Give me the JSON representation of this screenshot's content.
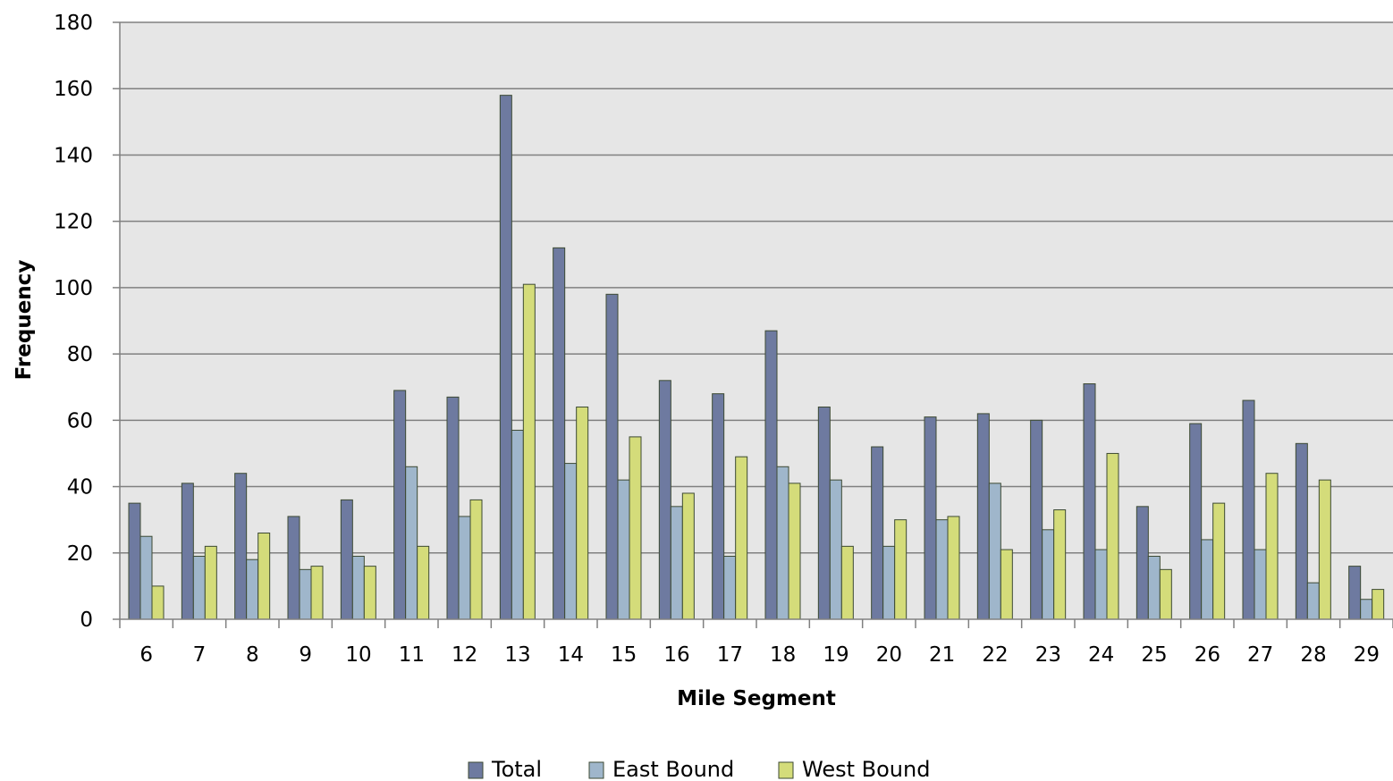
{
  "chart_data": {
    "type": "bar",
    "title": "",
    "xlabel": "Mile Segment",
    "ylabel": "Frequency",
    "ylim": [
      0,
      180
    ],
    "y_ticks": [
      0,
      20,
      40,
      60,
      80,
      100,
      120,
      140,
      160,
      180
    ],
    "grid": true,
    "legend_position": "bottom",
    "categories": [
      "6",
      "7",
      "8",
      "9",
      "10",
      "11",
      "12",
      "13",
      "14",
      "15",
      "16",
      "17",
      "18",
      "19",
      "20",
      "21",
      "22",
      "23",
      "24",
      "25",
      "26",
      "27",
      "28",
      "29"
    ],
    "series": [
      {
        "name": "Total",
        "color": "#6e7aa0",
        "values": [
          35,
          41,
          44,
          31,
          36,
          69,
          67,
          158,
          112,
          98,
          72,
          68,
          87,
          64,
          52,
          61,
          62,
          60,
          71,
          34,
          59,
          66,
          53,
          16
        ]
      },
      {
        "name": "East Bound",
        "color": "#9fb6cb",
        "values": [
          25,
          19,
          18,
          15,
          19,
          46,
          31,
          57,
          47,
          42,
          34,
          19,
          46,
          42,
          22,
          30,
          41,
          27,
          21,
          19,
          24,
          21,
          11,
          6
        ]
      },
      {
        "name": "West Bound",
        "color": "#d4dc7a",
        "values": [
          10,
          22,
          26,
          16,
          16,
          22,
          36,
          101,
          64,
          55,
          38,
          49,
          41,
          22,
          30,
          31,
          21,
          33,
          50,
          15,
          35,
          44,
          42,
          9
        ]
      }
    ],
    "colors": {
      "plot_background": "#e6e6e6",
      "gridline": "#808080",
      "bar_outline": "#3d4a33"
    }
  }
}
